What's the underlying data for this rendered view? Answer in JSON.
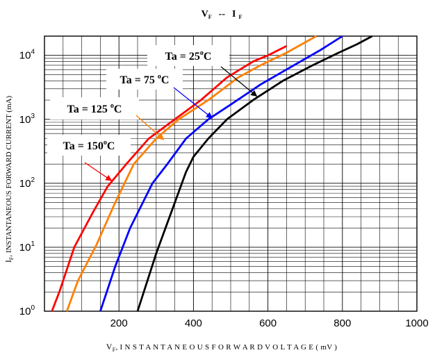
{
  "chart_data": {
    "type": "line",
    "title": "V  F -- I  F",
    "title_parts": {
      "a": "V",
      "a_sub": "F",
      "sep": "--",
      "b": "I",
      "b_sub": "F"
    },
    "xlabel": "V F , I N S T A N T A N E O U S   F O R W A R D   V O L T A G E ( mV )",
    "xlabel_parts": {
      "main": "V",
      "sub": "F",
      "rest": ", I N S T A N T A N E O U S   F O R W A R D   V O L T A G E ( mV )"
    },
    "ylabel_parts": {
      "main": "I",
      "sub": "F",
      "rest": ", INSTANTANEOUS  FORWARD  CURRENT (mA)"
    },
    "xlim": [
      0,
      1000
    ],
    "ylim": [
      1,
      20000
    ],
    "yscale": "log",
    "grid": true,
    "x_ticks": [
      "200",
      "400",
      "600",
      "800",
      "1000"
    ],
    "x_tick_values": [
      200,
      400,
      600,
      800,
      1000
    ],
    "y_ticks": [
      {
        "value": 1,
        "mantissa": "10",
        "exp": "0"
      },
      {
        "value": 10,
        "mantissa": "10",
        "exp": "1"
      },
      {
        "value": 100,
        "mantissa": "10",
        "exp": "2"
      },
      {
        "value": 1000,
        "mantissa": "10",
        "exp": "3"
      },
      {
        "value": 10000,
        "mantissa": "10",
        "exp": "4"
      }
    ],
    "series": [
      {
        "name": "Ta = 25°C",
        "label_main": "Ta = 25",
        "label_deg": "o",
        "label_unit": "C",
        "color": "#000000",
        "points": [
          [
            250,
            1
          ],
          [
            300,
            8
          ],
          [
            350,
            50
          ],
          [
            380,
            150
          ],
          [
            400,
            260
          ],
          [
            440,
            500
          ],
          [
            490,
            1000
          ],
          [
            560,
            2000
          ],
          [
            640,
            4000
          ],
          [
            720,
            7000
          ],
          [
            790,
            11000
          ],
          [
            840,
            15000
          ],
          [
            880,
            20000
          ]
        ]
      },
      {
        "name": "Ta = 75°C",
        "label_main": "Ta = 75",
        "label_deg": "o",
        "label_unit": "C",
        "color": "#0000ff",
        "points": [
          [
            150,
            1
          ],
          [
            190,
            5
          ],
          [
            230,
            20
          ],
          [
            290,
            100
          ],
          [
            330,
            200
          ],
          [
            380,
            500
          ],
          [
            440,
            1000
          ],
          [
            500,
            1700
          ],
          [
            580,
            3500
          ],
          [
            660,
            6500
          ],
          [
            740,
            12000
          ],
          [
            800,
            20000
          ]
        ]
      },
      {
        "name": "Ta = 125°C",
        "label_main": "Ta = 125",
        "label_deg": "o",
        "label_unit": "C",
        "color": "#ff8000",
        "points": [
          [
            60,
            1
          ],
          [
            90,
            3
          ],
          [
            140,
            11
          ],
          [
            190,
            50
          ],
          [
            240,
            200
          ],
          [
            300,
            500
          ],
          [
            360,
            1000
          ],
          [
            440,
            2000
          ],
          [
            520,
            4500
          ],
          [
            580,
            7000
          ],
          [
            650,
            11000
          ],
          [
            730,
            20000
          ]
        ]
      },
      {
        "name": "Ta = 150°C",
        "label_main": "Ta = 150",
        "label_deg": "o",
        "label_unit": "C",
        "color": "#ff0000",
        "points": [
          [
            20,
            1
          ],
          [
            40,
            2
          ],
          [
            80,
            10
          ],
          [
            130,
            35
          ],
          [
            170,
            90
          ],
          [
            220,
            200
          ],
          [
            280,
            500
          ],
          [
            350,
            1000
          ],
          [
            420,
            2000
          ],
          [
            490,
            4500
          ],
          [
            560,
            8000
          ],
          [
            600,
            10000
          ],
          [
            650,
            14000
          ]
        ]
      }
    ],
    "annotations": [
      {
        "series": 0,
        "text_main": "Ta = 25",
        "deg": "o",
        "unit": "C",
        "arrow_to": [
          570,
          2300
        ]
      },
      {
        "series": 1,
        "text_main": "Ta = 75 ",
        "deg": "o",
        "unit": "C",
        "arrow_to": [
          450,
          1050
        ]
      },
      {
        "series": 2,
        "text_main": "Ta = 125 ",
        "deg": "o",
        "unit": "C",
        "arrow_to": [
          320,
          480
        ]
      },
      {
        "series": 3,
        "text_main": "Ta = 150",
        "deg": "o",
        "unit": "C",
        "arrow_to": [
          180,
          110
        ]
      }
    ]
  }
}
